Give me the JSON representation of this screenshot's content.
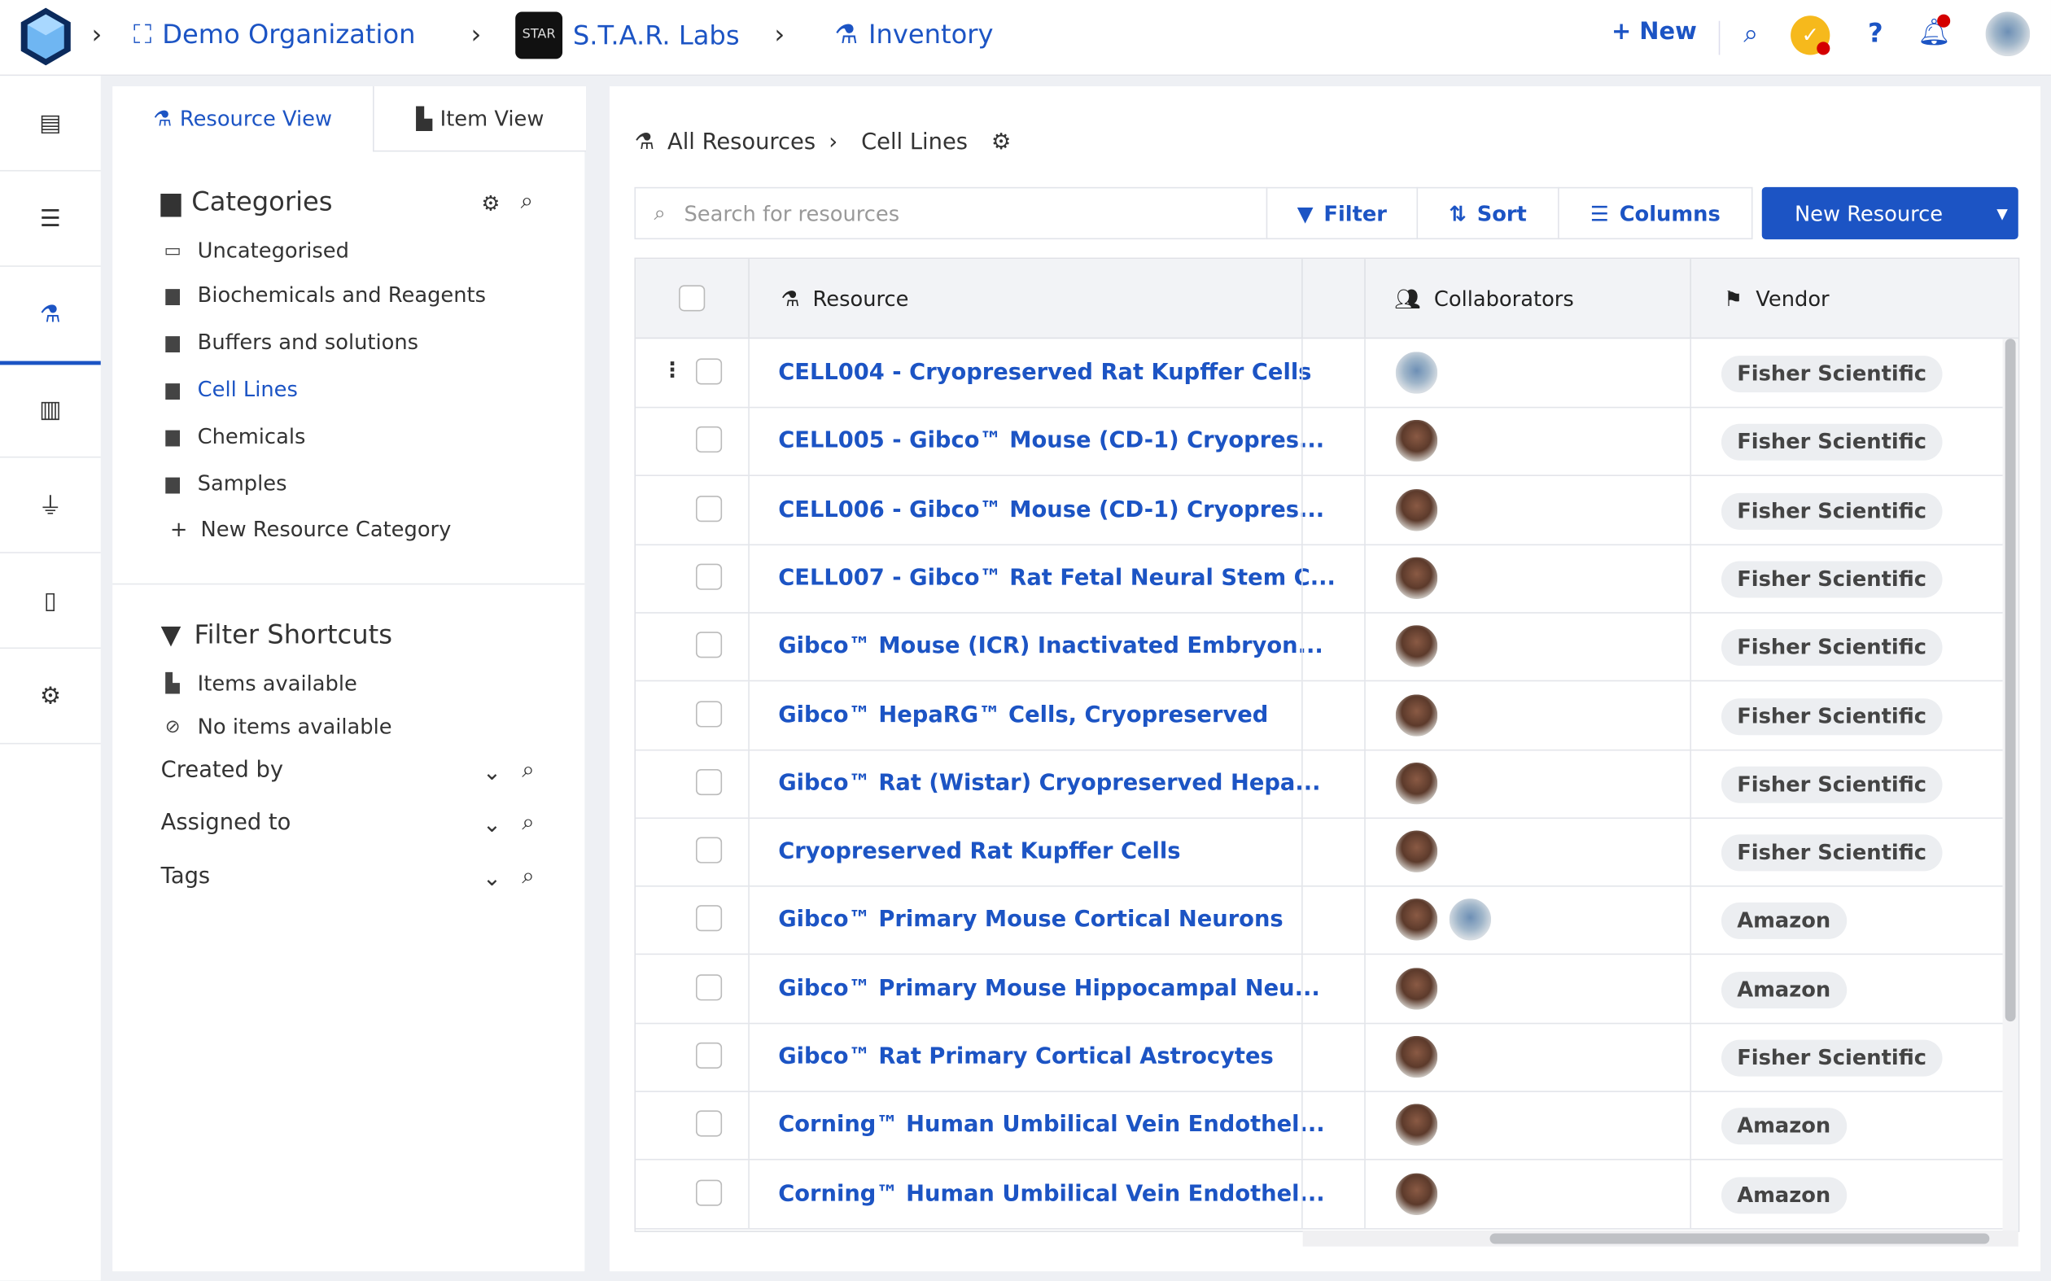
{
  "topbar": {
    "org": "Demo Organization",
    "lab": "S.T.A.R. Labs",
    "lab_logo_text": "STAR",
    "module": "Inventory",
    "new_label": "New"
  },
  "rail": [
    "notebook-icon",
    "checklist-icon",
    "flask-icon",
    "inventory-icon",
    "plug-icon",
    "document-icon",
    "gear-icon"
  ],
  "left": {
    "tabs": [
      "Resource View",
      "Item View"
    ],
    "categories_title": "Categories",
    "categories": [
      "Uncategorised",
      "Biochemicals and Reagents",
      "Buffers and solutions",
      "Cell Lines",
      "Chemicals",
      "Samples"
    ],
    "selected_category": "Cell Lines",
    "new_category": "New Resource Category",
    "filters_title": "Filter Shortcuts",
    "shortcuts": [
      "Items available",
      "No items available"
    ],
    "dropdowns": [
      "Created by",
      "Assigned to",
      "Tags"
    ]
  },
  "main": {
    "breadcrumb": [
      "All Resources",
      "Cell Lines"
    ],
    "search_placeholder": "Search for resources",
    "filter": "Filter",
    "sort": "Sort",
    "columns": "Columns",
    "new_resource": "New Resource",
    "headers": {
      "resource": "Resource",
      "collaborators": "Collaborators",
      "vendor": "Vendor"
    },
    "rows": [
      {
        "name": "CELL004 - Cryopreserved Rat Kupffer Cells",
        "avatars": [
          "alt"
        ],
        "vendor": "Fisher Scientific"
      },
      {
        "name": "CELL005 - Gibco™ Mouse (CD-1) Cryopres...",
        "avatars": [
          "a"
        ],
        "vendor": "Fisher Scientific"
      },
      {
        "name": "CELL006 - Gibco™ Mouse (CD-1) Cryopres...",
        "avatars": [
          "a"
        ],
        "vendor": "Fisher Scientific"
      },
      {
        "name": "CELL007 - Gibco™ Rat Fetal Neural Stem C...",
        "avatars": [
          "a"
        ],
        "vendor": "Fisher Scientific"
      },
      {
        "name": "Gibco™ Mouse (ICR) Inactivated Embryon...",
        "avatars": [
          "a"
        ],
        "vendor": "Fisher Scientific"
      },
      {
        "name": "Gibco™ HepaRG™ Cells, Cryopreserved",
        "avatars": [
          "a"
        ],
        "vendor": "Fisher Scientific"
      },
      {
        "name": "Gibco™ Rat (Wistar) Cryopreserved Hepa...",
        "avatars": [
          "a"
        ],
        "vendor": "Fisher Scientific"
      },
      {
        "name": "Cryopreserved Rat Kupffer Cells",
        "avatars": [
          "a"
        ],
        "vendor": "Fisher Scientific"
      },
      {
        "name": "Gibco™ Primary Mouse Cortical Neurons",
        "avatars": [
          "a",
          "alt"
        ],
        "vendor": "Amazon"
      },
      {
        "name": "Gibco™ Primary Mouse Hippocampal Neu...",
        "avatars": [
          "a"
        ],
        "vendor": "Amazon"
      },
      {
        "name": "Gibco™ Rat Primary Cortical Astrocytes",
        "avatars": [
          "a"
        ],
        "vendor": "Fisher Scientific"
      },
      {
        "name": "Corning™ Human Umbilical Vein Endothel...",
        "avatars": [
          "a"
        ],
        "vendor": "Amazon"
      },
      {
        "name": "Corning™ Human Umbilical Vein Endothel...",
        "avatars": [
          "a"
        ],
        "vendor": "Amazon"
      }
    ]
  },
  "colors": {
    "accent": "#1c54c4",
    "notification": "#d40000",
    "tasks": "#f6b91c"
  }
}
